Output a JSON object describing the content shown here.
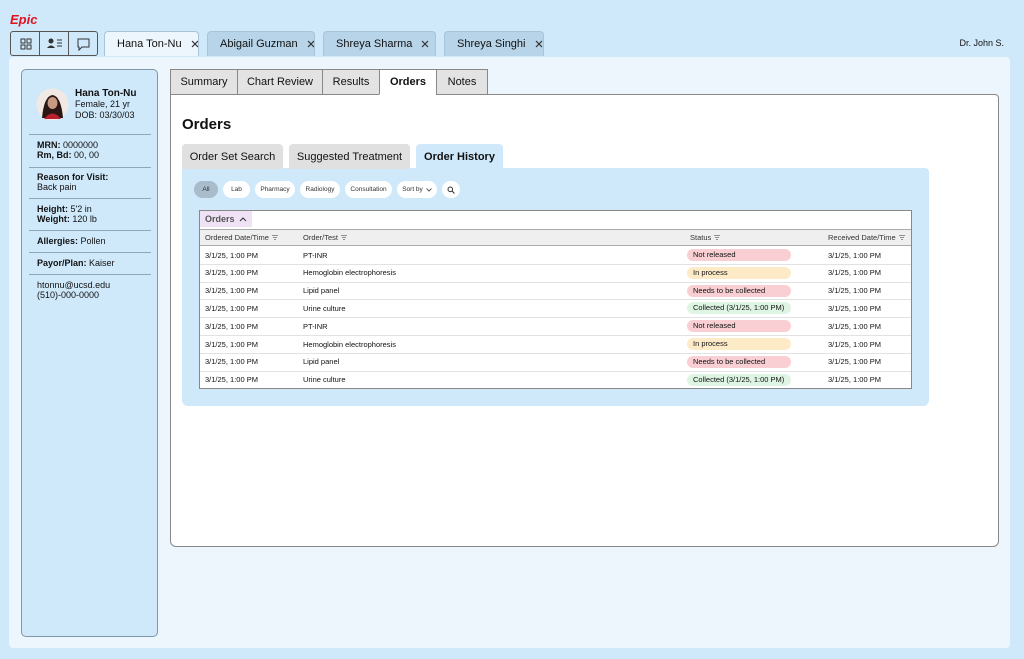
{
  "app": {
    "logo": "Epic",
    "user": "Dr. John S."
  },
  "patient_tabs": [
    "Hana Ton-Nu",
    "Abigail Guzman",
    "Shreya Sharma",
    "Shreya Singhi"
  ],
  "active_patient_tab": 0,
  "patient": {
    "name": "Hana Ton-Nu",
    "sex_age": "Female, 21 yr",
    "dob": "DOB: 03/30/03",
    "groups": [
      [
        {
          "label": "MRN:",
          "value": "0000000"
        },
        {
          "label": "Rm, Bd:",
          "value": "00, 00"
        }
      ],
      [
        {
          "label": "Reason for Visit:",
          "value": "Back pain"
        }
      ],
      [
        {
          "label": "Height:",
          "value": "5'2 in"
        },
        {
          "label": "Weight:",
          "value": "120 lb"
        }
      ],
      [
        {
          "label": "Allergies:",
          "value": "Pollen"
        }
      ],
      [
        {
          "label": "Payor/Plan:",
          "value": "Kaiser"
        }
      ]
    ],
    "email": "htonnu@ucsd.edu",
    "phone": "(510)-000-0000"
  },
  "nav_tabs": [
    "Summary",
    "Chart Review",
    "Results",
    "Orders",
    "Notes"
  ],
  "active_nav_tab": 3,
  "page_title": "Orders",
  "sub_tabs": [
    "Order Set Search",
    "Suggested Treatment",
    "Order History"
  ],
  "active_sub_tab": 2,
  "filters": [
    "All",
    "Lab",
    "Pharmacy",
    "Radiology",
    "Consultation",
    "Sort by"
  ],
  "table": {
    "title": "Orders",
    "columns": [
      "Ordered Date/Time",
      "Order/Test",
      "Status",
      "Received Date/Time"
    ],
    "rows": [
      [
        "3/1/25, 1:00 PM",
        "PT-INR",
        "Not released",
        "3/1/25, 1:00 PM"
      ],
      [
        "3/1/25, 1:00 PM",
        "Hemoglobin electrophoresis",
        "In process",
        "3/1/25, 1:00 PM"
      ],
      [
        "3/1/25, 1:00 PM",
        "Lipid panel",
        "Needs to be collected",
        "3/1/25, 1:00 PM"
      ],
      [
        "3/1/25, 1:00 PM",
        "Urine culture",
        "Collected (3/1/25, 1:00 PM)",
        "3/1/25, 1:00 PM"
      ],
      [
        "3/1/25, 1:00 PM",
        "PT-INR",
        "Not released",
        "3/1/25, 1:00 PM"
      ],
      [
        "3/1/25, 1:00 PM",
        "Hemoglobin electrophoresis",
        "In process",
        "3/1/25, 1:00 PM"
      ],
      [
        "3/1/25, 1:00 PM",
        "Lipid panel",
        "Needs to be collected",
        "3/1/25, 1:00 PM"
      ],
      [
        "3/1/25, 1:00 PM",
        "Urine culture",
        "Collected (3/1/25, 1:00 PM)",
        "3/1/25, 1:00 PM"
      ]
    ],
    "status_colors": [
      "#f9cfd3",
      "#fdebc8",
      "#f9cfd3",
      "#dff5e3",
      "#f9cfd3",
      "#fdebc8",
      "#f9cfd3",
      "#dff5e3"
    ]
  }
}
